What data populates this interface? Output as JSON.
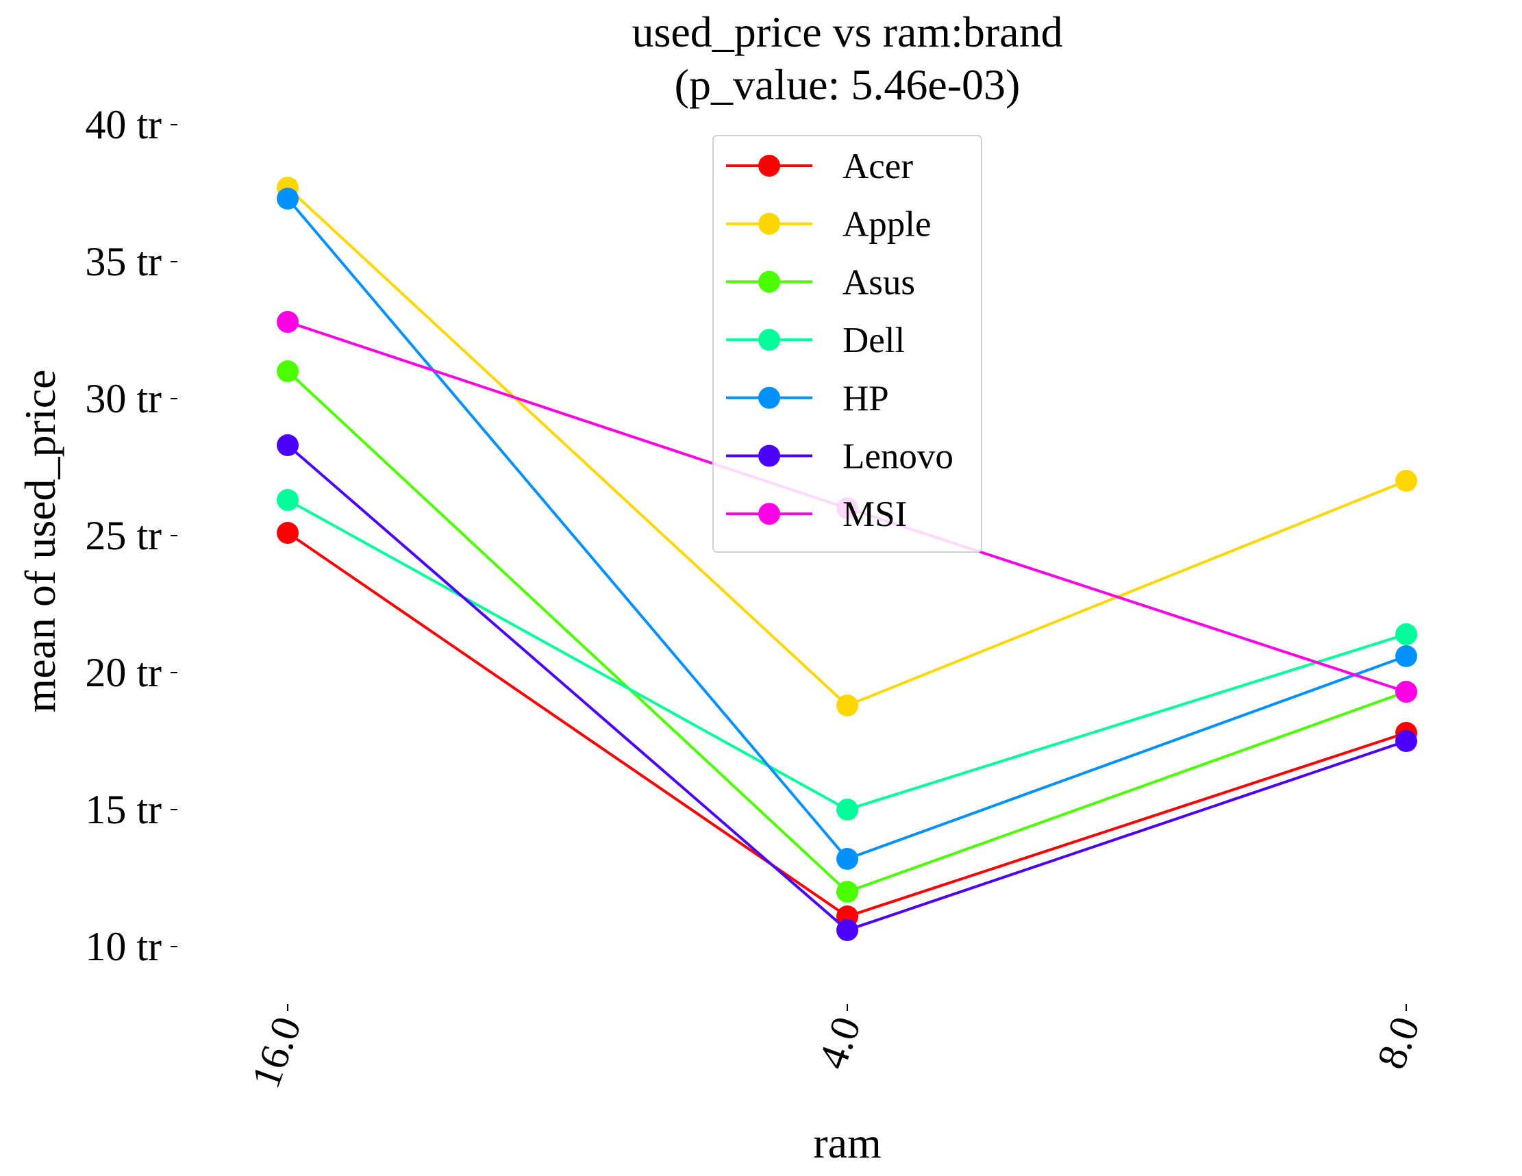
{
  "chart_data": {
    "type": "line",
    "title": "used_price vs ram:brand",
    "subtitle": "(p_value: 5.46e-03)",
    "xlabel": "ram",
    "ylabel": "mean of used_price",
    "categories": [
      "16.0",
      "4.0",
      "8.0"
    ],
    "ylim": [
      7.8,
      40
    ],
    "yticks": [
      {
        "value": 10,
        "label": "10 tr"
      },
      {
        "value": 15,
        "label": "15 tr"
      },
      {
        "value": 20,
        "label": "20 tr"
      },
      {
        "value": 25,
        "label": "25 tr"
      },
      {
        "value": 30,
        "label": "30 tr"
      },
      {
        "value": 35,
        "label": "35 tr"
      },
      {
        "value": 40,
        "label": "40 tr"
      }
    ],
    "grid": false,
    "legend_position": "top-center",
    "series": [
      {
        "name": "Acer",
        "color": "#ff0000",
        "values": [
          25.1,
          11.1,
          17.8
        ]
      },
      {
        "name": "Apple",
        "color": "#ffd700",
        "values": [
          37.7,
          18.8,
          27.0
        ]
      },
      {
        "name": "Asus",
        "color": "#4cff00",
        "values": [
          31.0,
          12.0,
          19.3
        ]
      },
      {
        "name": "Dell",
        "color": "#00ff99",
        "values": [
          26.3,
          15.0,
          21.4
        ]
      },
      {
        "name": "HP",
        "color": "#0090ff",
        "values": [
          37.3,
          13.2,
          20.6
        ]
      },
      {
        "name": "Lenovo",
        "color": "#4b00ff",
        "values": [
          28.3,
          10.6,
          17.5
        ]
      },
      {
        "name": "MSI",
        "color": "#ff00e6",
        "values": [
          32.8,
          26.0,
          19.3
        ]
      }
    ]
  }
}
